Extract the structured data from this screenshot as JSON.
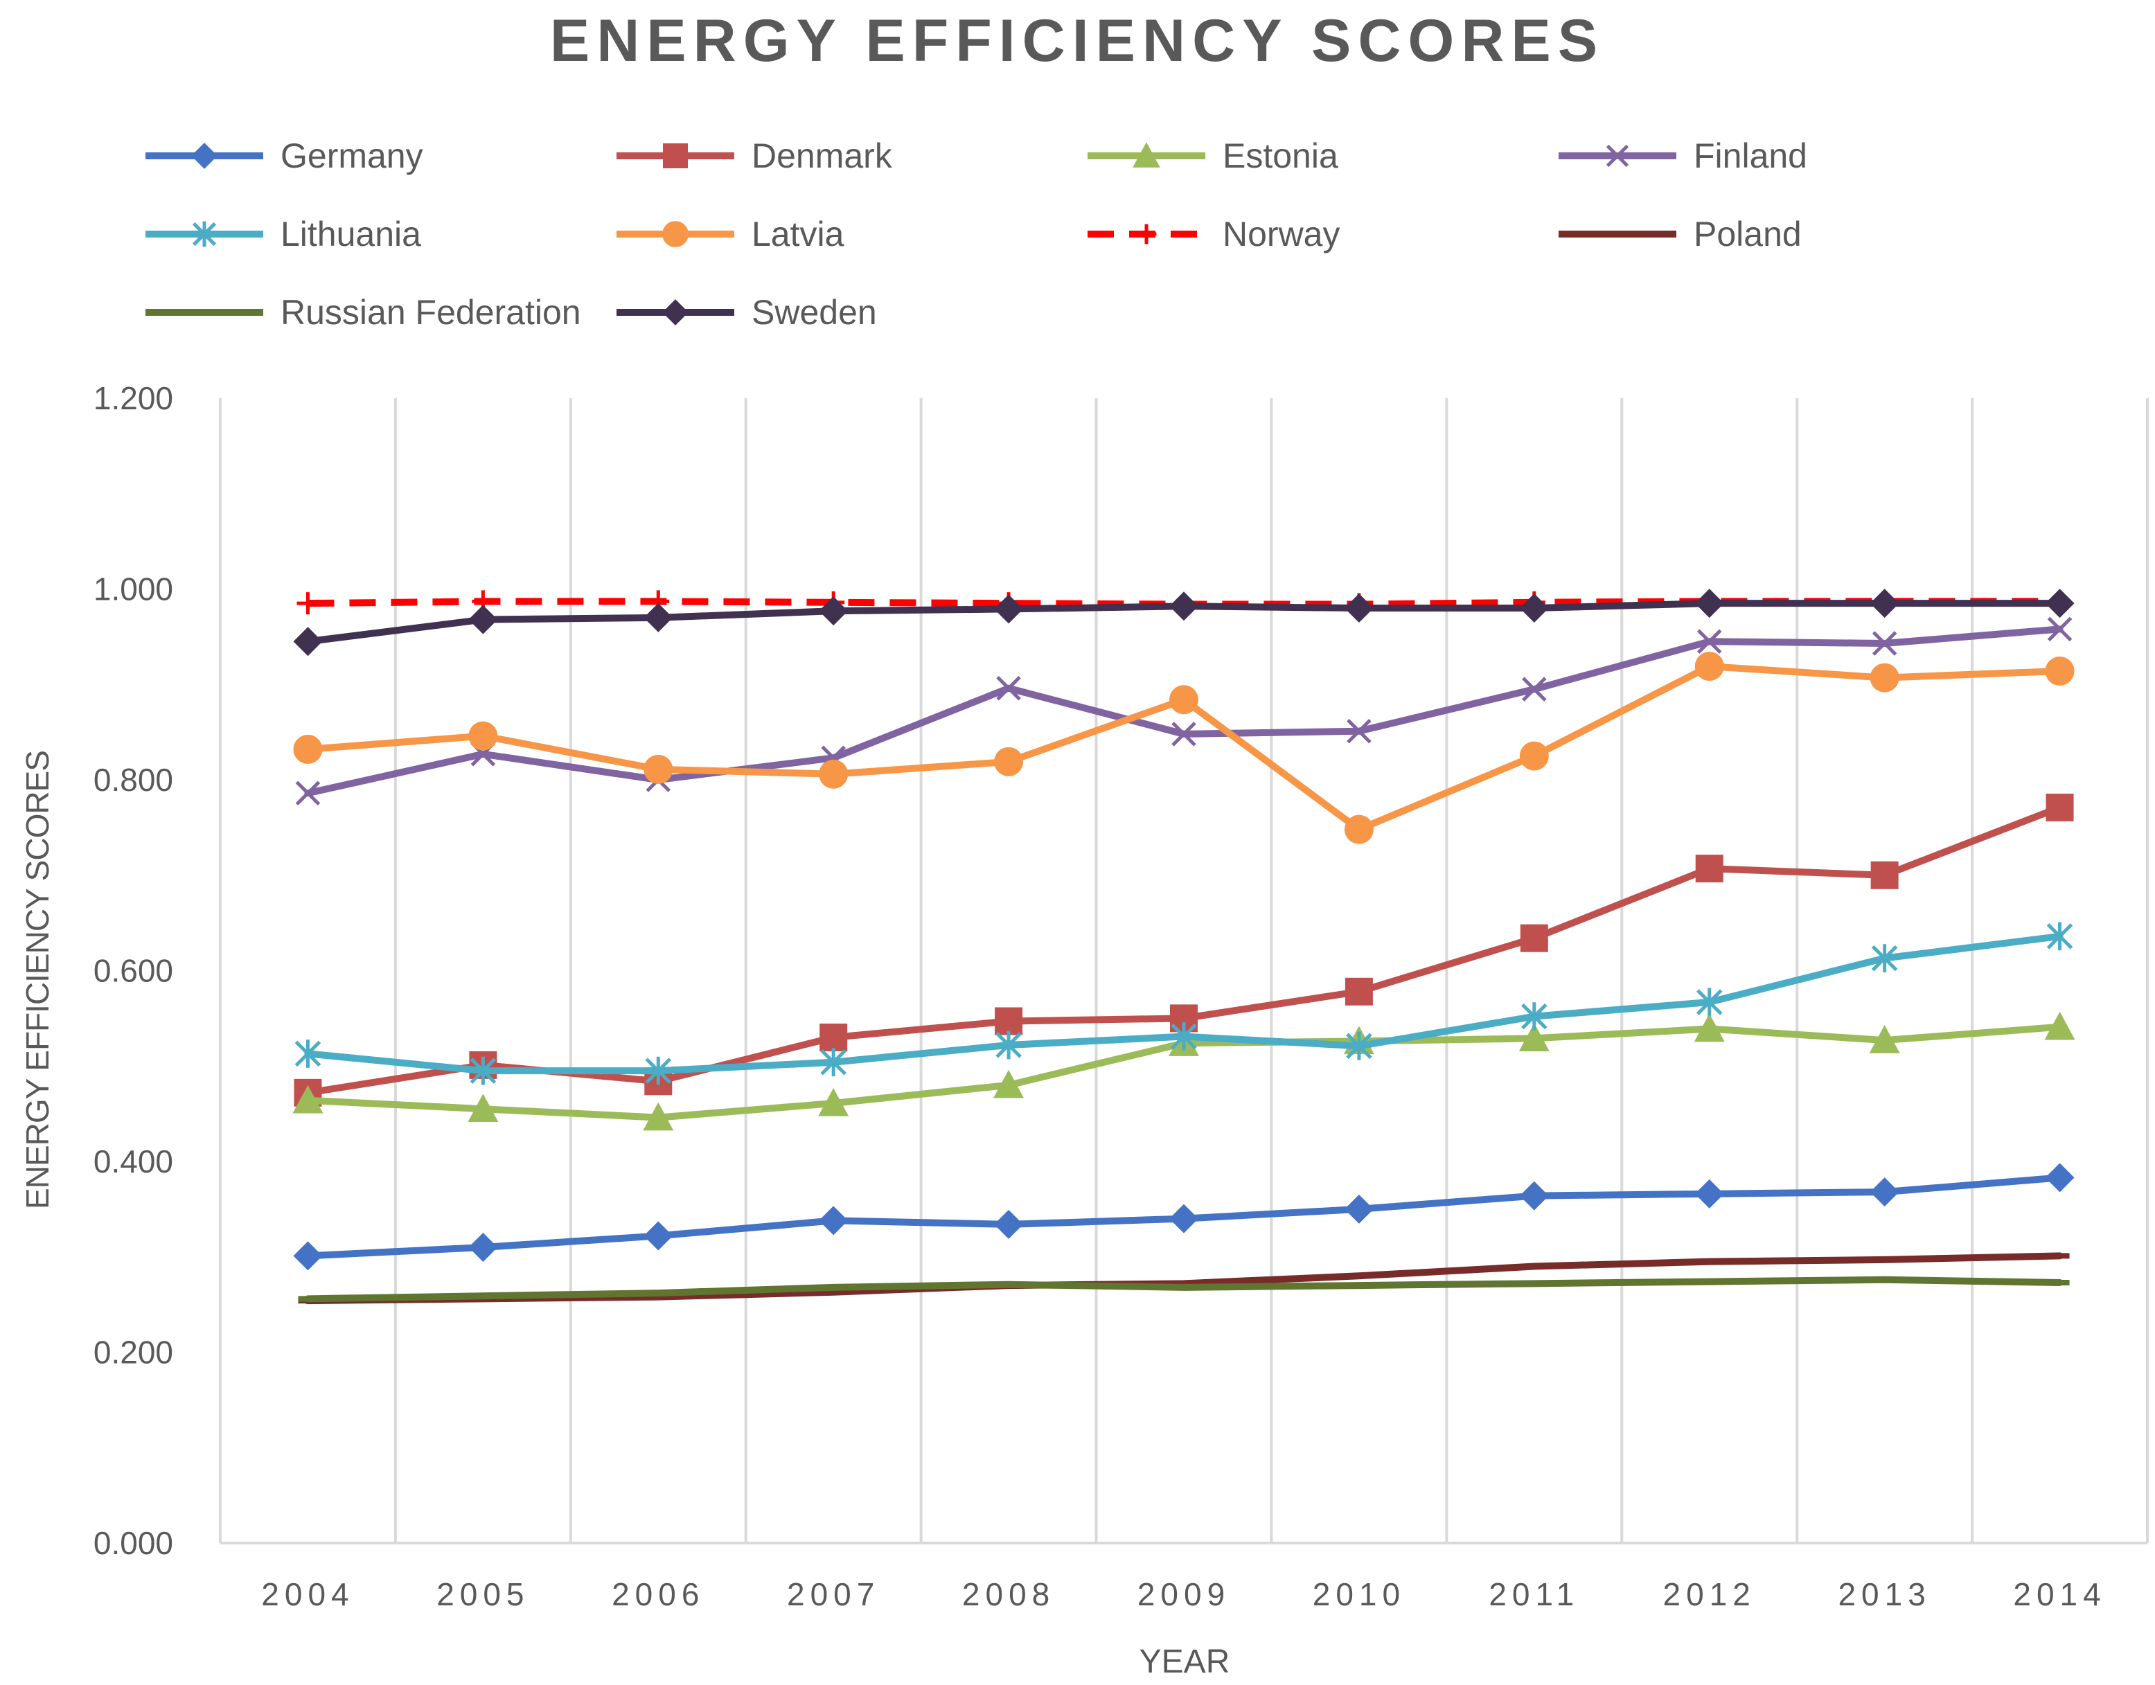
{
  "chart_data": {
    "type": "line",
    "title": "ENERGY EFFICIENCY SCORES",
    "xlabel": "YEAR",
    "ylabel": "ENERGY EFFICIENCY SCORES",
    "x": [
      "2004",
      "2005",
      "2006",
      "2007",
      "2008",
      "2009",
      "2010",
      "2011",
      "2012",
      "2013",
      "2014"
    ],
    "ylim": [
      0,
      1.2
    ],
    "yticks": [
      "0.000",
      "0.200",
      "0.400",
      "0.600",
      "0.800",
      "1.000",
      "1.200"
    ],
    "grid": "vertical",
    "legend_position": "top",
    "series": [
      {
        "name": "Germany",
        "color": "#4472c4",
        "marker": "diamond",
        "dash": false,
        "values": [
          0.301,
          0.31,
          0.322,
          0.338,
          0.334,
          0.34,
          0.35,
          0.364,
          0.366,
          0.368,
          0.383
        ]
      },
      {
        "name": "Denmark",
        "color": "#c0504d",
        "marker": "square",
        "dash": false,
        "values": [
          0.472,
          0.501,
          0.484,
          0.53,
          0.547,
          0.55,
          0.578,
          0.634,
          0.707,
          0.7,
          0.771
        ]
      },
      {
        "name": "Estonia",
        "color": "#9bbb59",
        "marker": "triangle",
        "dash": false,
        "values": [
          0.464,
          0.455,
          0.446,
          0.461,
          0.48,
          0.524,
          0.526,
          0.529,
          0.539,
          0.527,
          0.541
        ]
      },
      {
        "name": "Finland",
        "color": "#8064a2",
        "marker": "x",
        "dash": false,
        "values": [
          0.786,
          0.827,
          0.8,
          0.823,
          0.896,
          0.848,
          0.851,
          0.895,
          0.945,
          0.943,
          0.958
        ]
      },
      {
        "name": "Lithuania",
        "color": "#4bacc6",
        "marker": "star",
        "dash": false,
        "values": [
          0.513,
          0.495,
          0.495,
          0.504,
          0.522,
          0.531,
          0.521,
          0.552,
          0.567,
          0.613,
          0.636
        ]
      },
      {
        "name": "Latvia",
        "color": "#f79646",
        "marker": "circle",
        "dash": false,
        "values": [
          0.832,
          0.846,
          0.811,
          0.806,
          0.819,
          0.884,
          0.748,
          0.825,
          0.919,
          0.907,
          0.914
        ]
      },
      {
        "name": "Norway",
        "color": "#ff0000",
        "marker": "plus",
        "dash": true,
        "values": [
          0.985,
          0.987,
          0.987,
          0.986,
          0.985,
          0.984,
          0.984,
          0.986,
          0.987,
          0.987,
          0.987
        ]
      },
      {
        "name": "Poland",
        "color": "#772c2a",
        "marker": "dash",
        "dash": false,
        "values": [
          0.254,
          0.256,
          0.258,
          0.263,
          0.27,
          0.272,
          0.28,
          0.29,
          0.295,
          0.297,
          0.301
        ]
      },
      {
        "name": "Russian Federation",
        "color": "#5f7530",
        "marker": "dash",
        "dash": false,
        "values": [
          0.256,
          0.259,
          0.262,
          0.268,
          0.271,
          0.268,
          0.27,
          0.272,
          0.274,
          0.276,
          0.273
        ]
      },
      {
        "name": "Sweden",
        "color": "#403151",
        "marker": "diamond",
        "dash": false,
        "values": [
          0.945,
          0.968,
          0.97,
          0.977,
          0.979,
          0.982,
          0.98,
          0.98,
          0.985,
          0.985,
          0.985
        ]
      }
    ]
  }
}
